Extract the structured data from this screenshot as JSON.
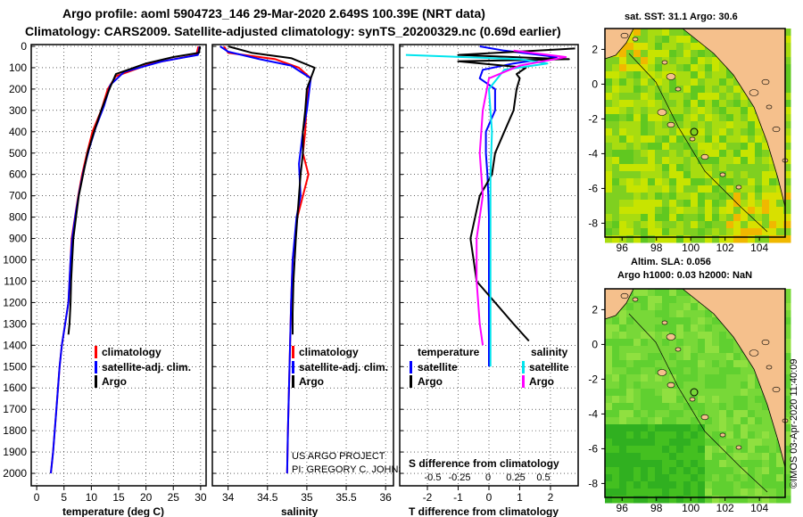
{
  "title_line1": "Argo profile: aoml 5904723_146 29-Mar-2020 2.649S 100.39E (NRT data)",
  "title_line2": "Climatology: CARS2009. Satellite-adjusted climatology: synTS_20200329.nc (0.69d earlier)",
  "colors": {
    "climatology": "#ff0000",
    "satellite": "#0000ff",
    "argo": "#000000",
    "sat_salinity": "#00e5ee",
    "argo_salinity": "#ff00ff",
    "land": "#f5c08c"
  },
  "credits": {
    "project": "US ARGO PROJECT",
    "pi": "PI: GREGORY C. JOHNSON",
    "imos": "©IMOS 03-Apr-2020 11:40:09"
  },
  "chart_data": [
    {
      "type": "line",
      "panel": "temperature",
      "xlabel": "temperature (deg C)",
      "ylabel": "depth",
      "xlim": [
        -1,
        31
      ],
      "ylim": [
        0,
        2050
      ],
      "xticks": [
        0,
        5,
        10,
        15,
        20,
        25,
        30
      ],
      "yticks": [
        0,
        100,
        200,
        300,
        400,
        500,
        600,
        700,
        800,
        900,
        1000,
        1100,
        1200,
        1300,
        1400,
        1500,
        1600,
        1700,
        1800,
        1900,
        2000
      ],
      "legend": [
        "climatology",
        "satellite-adj. clim.",
        "Argo"
      ],
      "series": [
        {
          "name": "climatology",
          "color_key": "climatology",
          "points": [
            [
              29.6,
              0
            ],
            [
              29.2,
              40
            ],
            [
              21,
              80
            ],
            [
              14.5,
              140
            ],
            [
              13,
              200
            ],
            [
              11.8,
              300
            ],
            [
              10.2,
              400
            ],
            [
              9.2,
              500
            ],
            [
              8.3,
              600
            ],
            [
              7.6,
              700
            ],
            [
              7,
              800
            ],
            [
              6.4,
              900
            ],
            [
              6.2,
              1000
            ],
            [
              5.8,
              1200
            ],
            [
              5.2,
              1300
            ],
            [
              4.6,
              1400
            ],
            [
              4.2,
              1500
            ],
            [
              3.6,
              1700
            ],
            [
              3,
              1900
            ],
            [
              2.6,
              2000
            ]
          ]
        },
        {
          "name": "satellite-adj. clim.",
          "color_key": "satellite",
          "points": [
            [
              29.8,
              0
            ],
            [
              29.5,
              40
            ],
            [
              23,
              70
            ],
            [
              16,
              120
            ],
            [
              13.5,
              180
            ],
            [
              12.3,
              280
            ],
            [
              10.8,
              380
            ],
            [
              9.6,
              480
            ],
            [
              8.6,
              580
            ],
            [
              7.8,
              680
            ],
            [
              7.1,
              790
            ],
            [
              6.5,
              900
            ],
            [
              6.2,
              1000
            ],
            [
              5.8,
              1200
            ],
            [
              5.2,
              1300
            ],
            [
              4.6,
              1400
            ],
            [
              4.2,
              1500
            ],
            [
              3.6,
              1700
            ],
            [
              3,
              1900
            ],
            [
              2.6,
              2000
            ]
          ]
        },
        {
          "name": "Argo",
          "color_key": "argo",
          "points": [
            [
              29.9,
              0
            ],
            [
              29.7,
              30
            ],
            [
              25,
              50
            ],
            [
              20,
              80
            ],
            [
              14.5,
              130
            ],
            [
              13.3,
              200
            ],
            [
              11.8,
              300
            ],
            [
              10.5,
              400
            ],
            [
              9.3,
              500
            ],
            [
              8.5,
              600
            ],
            [
              7.7,
              700
            ],
            [
              7.2,
              800
            ],
            [
              6.7,
              900
            ],
            [
              6.5,
              1000
            ],
            [
              6.3,
              1100
            ],
            [
              6.2,
              1200
            ],
            [
              6,
              1300
            ],
            [
              5.8,
              1350
            ]
          ]
        }
      ]
    },
    {
      "type": "line",
      "panel": "salinity",
      "xlabel": "salinity",
      "ylabel": "depth",
      "xlim": [
        33.8,
        36.1
      ],
      "ylim": [
        0,
        2050
      ],
      "xticks": [
        "34",
        "34.5",
        "35",
        "35.5",
        "36"
      ],
      "legend": [
        "climatology",
        "satellite-adj. clim.",
        "Argo"
      ],
      "series": [
        {
          "name": "climatology",
          "color_key": "climatology",
          "points": [
            [
              33.95,
              0
            ],
            [
              34.0,
              30
            ],
            [
              34.6,
              60
            ],
            [
              34.9,
              100
            ],
            [
              35.05,
              150
            ],
            [
              35.0,
              250
            ],
            [
              34.98,
              400
            ],
            [
              34.95,
              500
            ],
            [
              35.02,
              600
            ],
            [
              34.95,
              700
            ],
            [
              34.88,
              800
            ],
            [
              34.82,
              1000
            ],
            [
              34.8,
              1200
            ],
            [
              34.78,
              1500
            ],
            [
              34.76,
              1800
            ],
            [
              34.75,
              2000
            ]
          ]
        },
        {
          "name": "satellite-adj. clim.",
          "color_key": "satellite",
          "points": [
            [
              33.9,
              0
            ],
            [
              34.0,
              25
            ],
            [
              34.4,
              60
            ],
            [
              34.8,
              90
            ],
            [
              35.05,
              150
            ],
            [
              35.0,
              300
            ],
            [
              34.95,
              400
            ],
            [
              34.9,
              550
            ],
            [
              34.92,
              700
            ],
            [
              34.87,
              800
            ],
            [
              34.82,
              1000
            ],
            [
              34.8,
              1200
            ],
            [
              34.78,
              1500
            ],
            [
              34.76,
              1800
            ],
            [
              34.75,
              2000
            ]
          ]
        },
        {
          "name": "Argo",
          "color_key": "argo",
          "points": [
            [
              34.0,
              0
            ],
            [
              34.3,
              30
            ],
            [
              34.8,
              55
            ],
            [
              35.1,
              100
            ],
            [
              35.05,
              150
            ],
            [
              35.0,
              200
            ],
            [
              34.98,
              300
            ],
            [
              34.95,
              400
            ],
            [
              34.95,
              500
            ],
            [
              34.92,
              600
            ],
            [
              34.9,
              700
            ],
            [
              34.88,
              800
            ],
            [
              34.86,
              900
            ],
            [
              34.83,
              1100
            ],
            [
              34.82,
              1250
            ],
            [
              34.82,
              1350
            ]
          ]
        }
      ]
    },
    {
      "type": "line",
      "panel": "differences",
      "xlabel": "T difference from climatology",
      "xlabel_top": "S difference from climatology",
      "xlim": [
        -2.9,
        2.9
      ],
      "ylim": [
        0,
        2050
      ],
      "xticks": [
        "-2",
        "-1",
        "0",
        "1",
        "2"
      ],
      "xticks_s": [
        "-0.5",
        "-0.25",
        "0",
        "0.25",
        "0.5"
      ],
      "legend_header": [
        "temperature",
        "salinity"
      ],
      "legend": [
        "satellite",
        "Argo",
        "satellite",
        "Argo"
      ],
      "series": [
        {
          "name": "temperature satellite",
          "color_key": "satellite",
          "points": [
            [
              -0.3,
              0
            ],
            [
              0.5,
              20
            ],
            [
              2.2,
              50
            ],
            [
              0.8,
              80
            ],
            [
              -0.2,
              110
            ],
            [
              -0.3,
              150
            ],
            [
              0.2,
              200
            ],
            [
              0.2,
              300
            ],
            [
              -0.1,
              400
            ],
            [
              -0.1,
              500
            ],
            [
              -0.05,
              600
            ],
            [
              -0.02,
              700
            ],
            [
              0,
              800
            ],
            [
              0,
              900
            ],
            [
              0,
              1000
            ],
            [
              0,
              1200
            ],
            [
              0,
              1400
            ],
            [
              0,
              1500
            ]
          ]
        },
        {
          "name": "temperature Argo",
          "color_key": "argo",
          "points": [
            [
              2.8,
              10
            ],
            [
              -1,
              40
            ],
            [
              2.6,
              60
            ],
            [
              -1,
              70
            ],
            [
              1.2,
              100
            ],
            [
              0.9,
              130
            ],
            [
              1,
              150
            ],
            [
              0.9,
              200
            ],
            [
              0.8,
              300
            ],
            [
              0.5,
              400
            ],
            [
              0.2,
              500
            ],
            [
              0.1,
              600
            ],
            [
              -0.3,
              700
            ],
            [
              -0.6,
              900
            ],
            [
              -0.5,
              1000
            ],
            [
              -0.4,
              1100
            ],
            [
              0.2,
              1200
            ],
            [
              0.8,
              1300
            ],
            [
              1.3,
              1380
            ]
          ]
        },
        {
          "name": "salinity satellite",
          "color_key": "sat_salinity",
          "points": [
            [
              -2.7,
              40
            ],
            [
              1.0,
              60
            ],
            [
              1.9,
              80
            ],
            [
              0.5,
              110
            ],
            [
              0,
              200
            ],
            [
              0.1,
              400
            ],
            [
              0.05,
              600
            ],
            [
              0.05,
              800
            ],
            [
              0.05,
              1000
            ],
            [
              0.05,
              1200
            ],
            [
              0.05,
              1400
            ],
            [
              0.05,
              1500
            ]
          ]
        },
        {
          "name": "salinity Argo",
          "color_key": "argo_salinity",
          "points": [
            [
              0.8,
              20
            ],
            [
              2.5,
              50
            ],
            [
              1.0,
              90
            ],
            [
              0,
              150
            ],
            [
              -0.2,
              300
            ],
            [
              -0.3,
              500
            ],
            [
              -0.2,
              700
            ],
            [
              -0.4,
              900
            ],
            [
              -0.4,
              1100
            ],
            [
              -0.3,
              1300
            ],
            [
              -0.2,
              1400
            ]
          ]
        }
      ]
    },
    {
      "type": "heatmap",
      "panel": "sat_sst_map",
      "title": "sat. SST: 31.1 Argo: 30.6",
      "xticks": [
        "96",
        "98",
        "100",
        "102",
        "104"
      ],
      "yticks": [
        "2",
        "0",
        "-2",
        "-4",
        "-6",
        "-8"
      ],
      "xlim": [
        95,
        105.5
      ],
      "ylim": [
        -8.8,
        3.2
      ],
      "argo_position": [
        100.39,
        -2.649
      ]
    },
    {
      "type": "heatmap",
      "panel": "altimetry_map",
      "title": "Altim. SLA: 0.056",
      "subtitle": "Argo h1000: 0.03 h2000: NaN",
      "xticks": [
        "96",
        "98",
        "100",
        "102",
        "104"
      ],
      "yticks": [
        "2",
        "0",
        "-2",
        "-4",
        "-6",
        "-8"
      ],
      "xlim": [
        95,
        105.5
      ],
      "ylim": [
        -8.8,
        3.2
      ],
      "argo_position": [
        100.39,
        -2.649
      ]
    }
  ]
}
